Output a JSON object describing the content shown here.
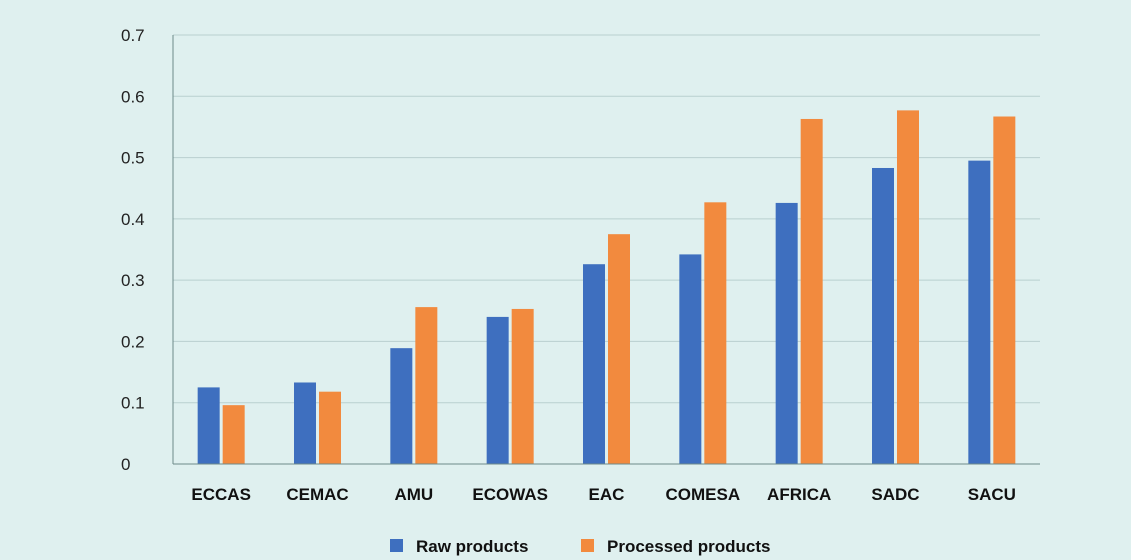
{
  "colors": {
    "background": "#dff0ef",
    "gridline": "#b9cfcf",
    "axis": "#6d8a8a",
    "raw": "#3e6fbf",
    "processed": "#f28a3e"
  },
  "chart_data": {
    "type": "bar",
    "title": "",
    "xlabel": "",
    "ylabel": "",
    "ylim": [
      0,
      0.7
    ],
    "yticks": [
      "0",
      "0.1",
      "0.2",
      "0.3",
      "0.4",
      "0.5",
      "0.6",
      "0.7"
    ],
    "grid": true,
    "legend_position": "bottom",
    "categories": [
      "ECCAS",
      "CEMAC",
      "AMU",
      "ECOWAS",
      "EAC",
      "COMESA",
      "AFRICA",
      "SADC",
      "SACU"
    ],
    "series": [
      {
        "name": "Raw products",
        "color": "#3e6fbf",
        "values": [
          0.125,
          0.133,
          0.189,
          0.24,
          0.326,
          0.342,
          0.426,
          0.483,
          0.495
        ]
      },
      {
        "name": "Processed products",
        "color": "#f28a3e",
        "values": [
          0.096,
          0.118,
          0.256,
          0.253,
          0.375,
          0.427,
          0.563,
          0.577,
          0.567
        ]
      }
    ]
  }
}
